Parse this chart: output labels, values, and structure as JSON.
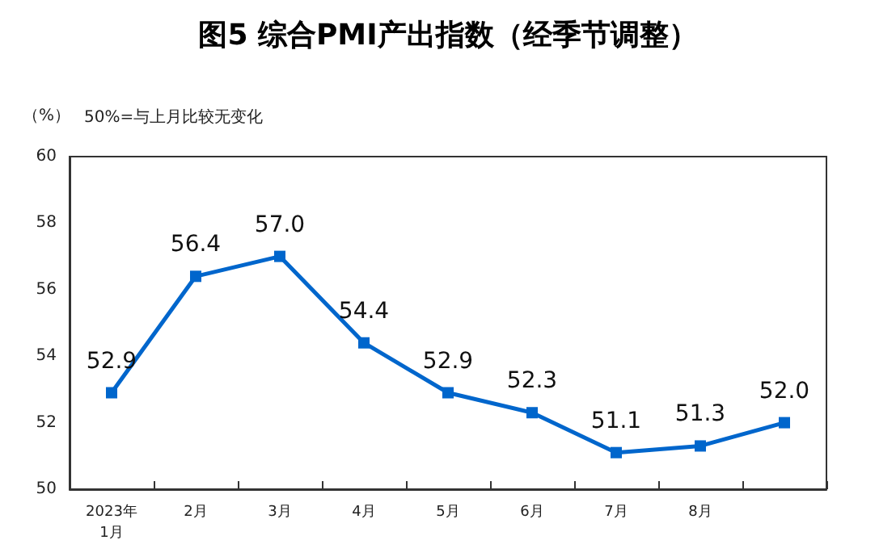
{
  "chart_data": {
    "type": "line",
    "title": "图5 综合PMI产出指数（经季节调整）",
    "ylabel": "（%）",
    "annotations": [
      "50%=与上月比较无变化"
    ],
    "categories": [
      "2023年\n1月",
      "2月",
      "3月",
      "4月",
      "5月",
      "6月",
      "7月",
      "8月",
      null
    ],
    "series": [
      {
        "color": "#0066cc",
        "values": [
          52.9,
          56.4,
          57.0,
          54.4,
          52.9,
          52.3,
          51.1,
          51.3,
          52.0
        ],
        "value_labels": [
          "52.9",
          "56.4",
          "57.0",
          "54.4",
          "52.9",
          "52.3",
          "51.1",
          "51.3",
          "52.0"
        ]
      }
    ],
    "ylim": [
      50,
      60
    ],
    "yticks": [
      50,
      52,
      54,
      56,
      58,
      60
    ],
    "grid": false,
    "marker": "square",
    "line_style": "solid"
  }
}
